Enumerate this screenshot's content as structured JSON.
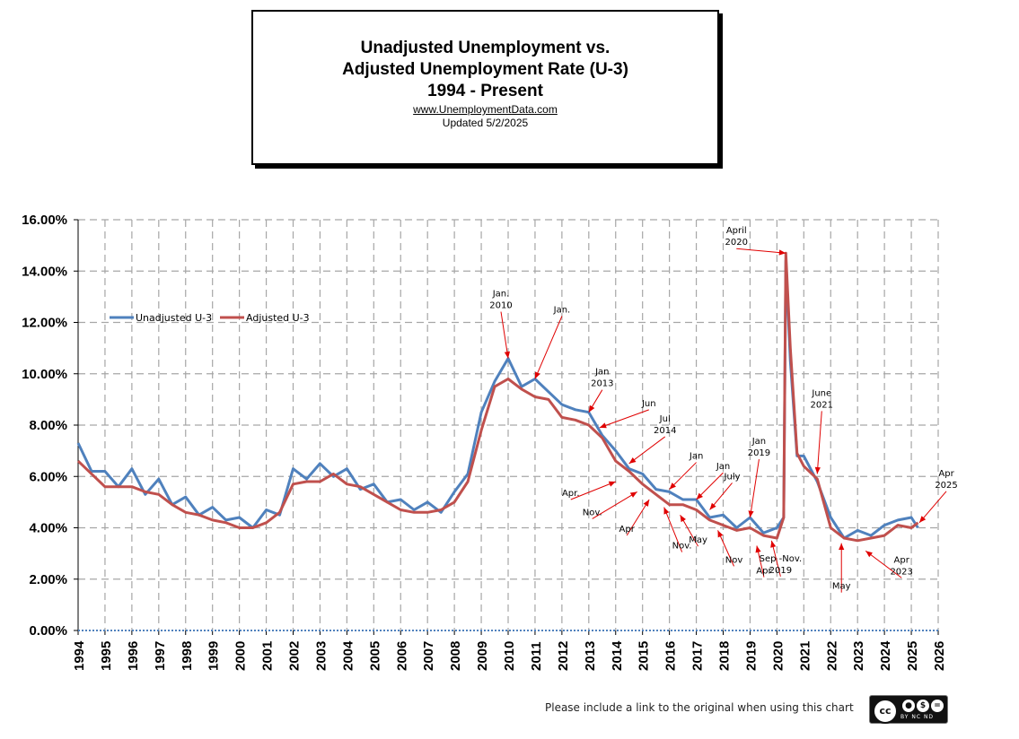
{
  "title_box": {
    "line1": "Unadjusted Unemployment  vs.",
    "line2": "Adjusted Unemployment Rate (U-3)",
    "line3": "1994 - Present",
    "url": "www.UnemploymentData.com",
    "updated": "Updated  5/2/2025"
  },
  "footer": {
    "note": "Please include a link to the original when using this chart",
    "license_icon": "creative-commons-by-nc-nd",
    "license_label": "BY   NC   ND",
    "cc_text": "cc"
  },
  "chart_data": {
    "type": "line",
    "title": "",
    "xlabel": "",
    "ylabel": "",
    "xlim": [
      1994,
      2026
    ],
    "ylim": [
      0,
      16
    ],
    "grid": "dashed horizontal and vertical gridlines",
    "legend_position": "upper-left inside plot",
    "y_ticks": [
      "0.00%",
      "2.00%",
      "4.00%",
      "6.00%",
      "8.00%",
      "10.00%",
      "12.00%",
      "14.00%",
      "16.00%"
    ],
    "x_ticks": [
      "1994",
      "1995",
      "1996",
      "1997",
      "1998",
      "1999",
      "2000",
      "2001",
      "2002",
      "2003",
      "2004",
      "2005",
      "2006",
      "2007",
      "2008",
      "2009",
      "2010",
      "2011",
      "2012",
      "2013",
      "2014",
      "2015",
      "2016",
      "2017",
      "2018",
      "2019",
      "2020",
      "2021",
      "2022",
      "2023",
      "2024",
      "2025",
      "2026"
    ],
    "series": [
      {
        "name": "Unadjusted U-3",
        "color": "#4f81bd",
        "x": [
          1994.0,
          1994.5,
          1995.0,
          1995.5,
          1996.0,
          1996.5,
          1997.0,
          1997.5,
          1998.0,
          1998.5,
          1999.0,
          1999.5,
          2000.0,
          2000.5,
          2001.0,
          2001.5,
          2002.0,
          2002.5,
          2003.0,
          2003.5,
          2004.0,
          2004.5,
          2005.0,
          2005.5,
          2006.0,
          2006.5,
          2007.0,
          2007.5,
          2008.0,
          2008.5,
          2009.0,
          2009.5,
          2010.0,
          2010.5,
          2011.0,
          2011.5,
          2012.0,
          2012.5,
          2013.0,
          2013.5,
          2014.0,
          2014.5,
          2015.0,
          2015.5,
          2016.0,
          2016.5,
          2017.0,
          2017.5,
          2018.0,
          2018.5,
          2019.0,
          2019.5,
          2020.0,
          2020.25,
          2020.33,
          2020.5,
          2020.75,
          2021.0,
          2021.5,
          2022.0,
          2022.5,
          2023.0,
          2023.5,
          2024.0,
          2024.5,
          2025.0,
          2025.25
        ],
        "values": [
          7.3,
          6.2,
          6.2,
          5.6,
          6.3,
          5.3,
          5.9,
          4.9,
          5.2,
          4.5,
          4.8,
          4.3,
          4.4,
          4.0,
          4.7,
          4.5,
          6.3,
          5.9,
          6.5,
          6.0,
          6.3,
          5.5,
          5.7,
          5.0,
          5.1,
          4.7,
          5.0,
          4.6,
          5.4,
          6.1,
          8.5,
          9.7,
          10.6,
          9.5,
          9.8,
          9.3,
          8.8,
          8.6,
          8.5,
          7.6,
          7.0,
          6.3,
          6.1,
          5.5,
          5.4,
          5.1,
          5.1,
          4.4,
          4.5,
          4.0,
          4.4,
          3.8,
          4.0,
          4.4,
          14.4,
          10.5,
          6.8,
          6.8,
          5.8,
          4.4,
          3.6,
          3.9,
          3.7,
          4.1,
          4.3,
          4.4,
          4.0
        ]
      },
      {
        "name": "Adjusted U-3",
        "color": "#c0504d",
        "x": [
          1994.0,
          1994.5,
          1995.0,
          1995.5,
          1996.0,
          1996.5,
          1997.0,
          1997.5,
          1998.0,
          1998.5,
          1999.0,
          1999.5,
          2000.0,
          2000.5,
          2001.0,
          2001.5,
          2002.0,
          2002.5,
          2003.0,
          2003.5,
          2004.0,
          2004.5,
          2005.0,
          2005.5,
          2006.0,
          2006.5,
          2007.0,
          2007.5,
          2008.0,
          2008.5,
          2009.0,
          2009.5,
          2010.0,
          2010.5,
          2011.0,
          2011.5,
          2012.0,
          2012.5,
          2013.0,
          2013.5,
          2014.0,
          2014.5,
          2015.0,
          2015.5,
          2016.0,
          2016.5,
          2017.0,
          2017.5,
          2018.0,
          2018.5,
          2019.0,
          2019.5,
          2020.0,
          2020.25,
          2020.33,
          2020.5,
          2020.75,
          2021.0,
          2021.5,
          2022.0,
          2022.5,
          2023.0,
          2023.5,
          2024.0,
          2024.5,
          2025.0,
          2025.25
        ],
        "values": [
          6.6,
          6.1,
          5.6,
          5.6,
          5.6,
          5.4,
          5.3,
          4.9,
          4.6,
          4.5,
          4.3,
          4.2,
          4.0,
          4.0,
          4.2,
          4.6,
          5.7,
          5.8,
          5.8,
          6.1,
          5.7,
          5.6,
          5.3,
          5.0,
          4.7,
          4.6,
          4.6,
          4.7,
          5.0,
          5.8,
          7.8,
          9.5,
          9.8,
          9.4,
          9.1,
          9.0,
          8.3,
          8.2,
          8.0,
          7.5,
          6.6,
          6.2,
          5.7,
          5.3,
          4.9,
          4.9,
          4.7,
          4.3,
          4.1,
          3.9,
          4.0,
          3.7,
          3.6,
          4.4,
          14.7,
          11.0,
          6.9,
          6.4,
          5.9,
          4.0,
          3.6,
          3.5,
          3.6,
          3.7,
          4.1,
          4.0,
          4.2
        ]
      }
    ],
    "annotations": [
      {
        "label": "Jan. 2010",
        "x": 2010.0,
        "y": 10.6
      },
      {
        "label": "Jan.",
        "x": 2011.0,
        "y": 9.8
      },
      {
        "label": "Jan 2013",
        "x": 2013.0,
        "y": 8.5
      },
      {
        "label": "Jun",
        "x": 2013.4,
        "y": 7.9
      },
      {
        "label": "Jul 2014",
        "x": 2014.5,
        "y": 6.5
      },
      {
        "label": "Apr.",
        "x": 2014.0,
        "y": 5.8
      },
      {
        "label": "Nov.",
        "x": 2014.8,
        "y": 5.4
      },
      {
        "label": "Apr",
        "x": 2015.25,
        "y": 5.1
      },
      {
        "label": "Nov.",
        "x": 2015.8,
        "y": 4.8
      },
      {
        "label": "Jan",
        "x": 2016.0,
        "y": 5.5
      },
      {
        "label": "May",
        "x": 2016.4,
        "y": 4.5
      },
      {
        "label": "Jan",
        "x": 2017.0,
        "y": 5.1
      },
      {
        "label": "July",
        "x": 2017.5,
        "y": 4.7
      },
      {
        "label": "Nov",
        "x": 2017.8,
        "y": 3.9
      },
      {
        "label": "Jan 2019",
        "x": 2019.0,
        "y": 4.4
      },
      {
        "label": "Apr",
        "x": 2019.25,
        "y": 3.3
      },
      {
        "label": "Sep -Nov. 2019",
        "x": 2019.8,
        "y": 3.5
      },
      {
        "label": "April 2020",
        "x": 2020.33,
        "y": 14.7
      },
      {
        "label": "June 2021",
        "x": 2021.5,
        "y": 6.1
      },
      {
        "label": "May",
        "x": 2022.4,
        "y": 3.4
      },
      {
        "label": "Apr 2023",
        "x": 2023.3,
        "y": 3.1
      },
      {
        "label": "Apr 2025",
        "x": 2025.3,
        "y": 4.2
      }
    ]
  }
}
